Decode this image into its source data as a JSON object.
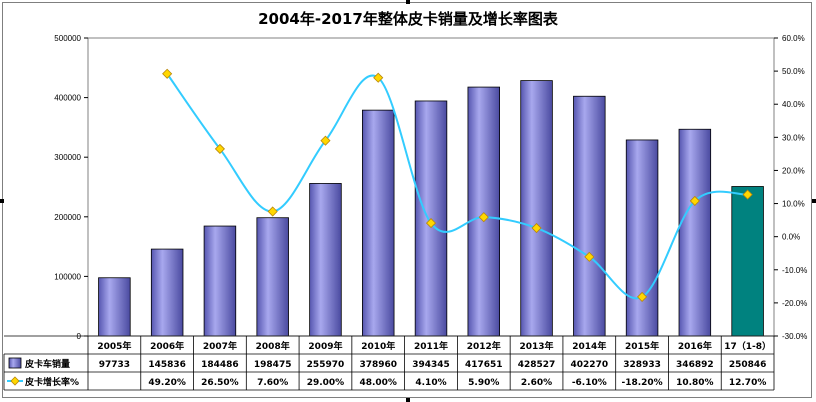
{
  "chart_data": {
    "type": "bar",
    "title": "2004年-2017年整体皮卡销量及增长率图表",
    "categories": [
      "2005年",
      "2006年",
      "2007年",
      "2008年",
      "2009年",
      "2010年",
      "2011年",
      "2012年",
      "2013年",
      "2014年",
      "2015年",
      "2016年",
      "17（1-8）"
    ],
    "series": [
      {
        "name": "皮卡车销量",
        "type": "bar",
        "axis": "left",
        "color": "#8a8ad6",
        "highlight_last_color": "#00827f",
        "values": [
          97733,
          145836,
          184486,
          198475,
          255970,
          378960,
          394345,
          417651,
          428527,
          402270,
          328933,
          346892,
          250846
        ],
        "labels": [
          "97733",
          "145836",
          "184486",
          "198475",
          "255970",
          "378960",
          "394345",
          "417651",
          "428527",
          "402270",
          "328933",
          "346892",
          "250846"
        ]
      },
      {
        "name": "皮卡增长率%",
        "type": "line",
        "axis": "right",
        "color": "#33ccff",
        "marker_color": "#ffd700",
        "values": [
          null,
          49.2,
          26.5,
          7.6,
          29.0,
          48.0,
          4.1,
          5.9,
          2.6,
          -6.1,
          -18.2,
          10.8,
          12.7
        ],
        "labels": [
          "",
          "49.20%",
          "26.50%",
          "7.60%",
          "29.00%",
          "48.00%",
          "4.10%",
          "5.90%",
          "2.60%",
          "-6.10%",
          "-18.20%",
          "10.80%",
          "12.70%"
        ]
      }
    ],
    "y_left": {
      "min": 0,
      "max": 500000,
      "ticks": [
        "0",
        "100000",
        "200000",
        "300000",
        "400000",
        "500000"
      ]
    },
    "y_right": {
      "min": -30,
      "max": 60,
      "ticks": [
        "-30.0%",
        "-20.0%",
        "-10.0%",
        "0.0%",
        "10.0%",
        "20.0%",
        "30.0%",
        "40.0%",
        "50.0%",
        "60.0%"
      ]
    },
    "grid": false,
    "legend": "data-table"
  }
}
